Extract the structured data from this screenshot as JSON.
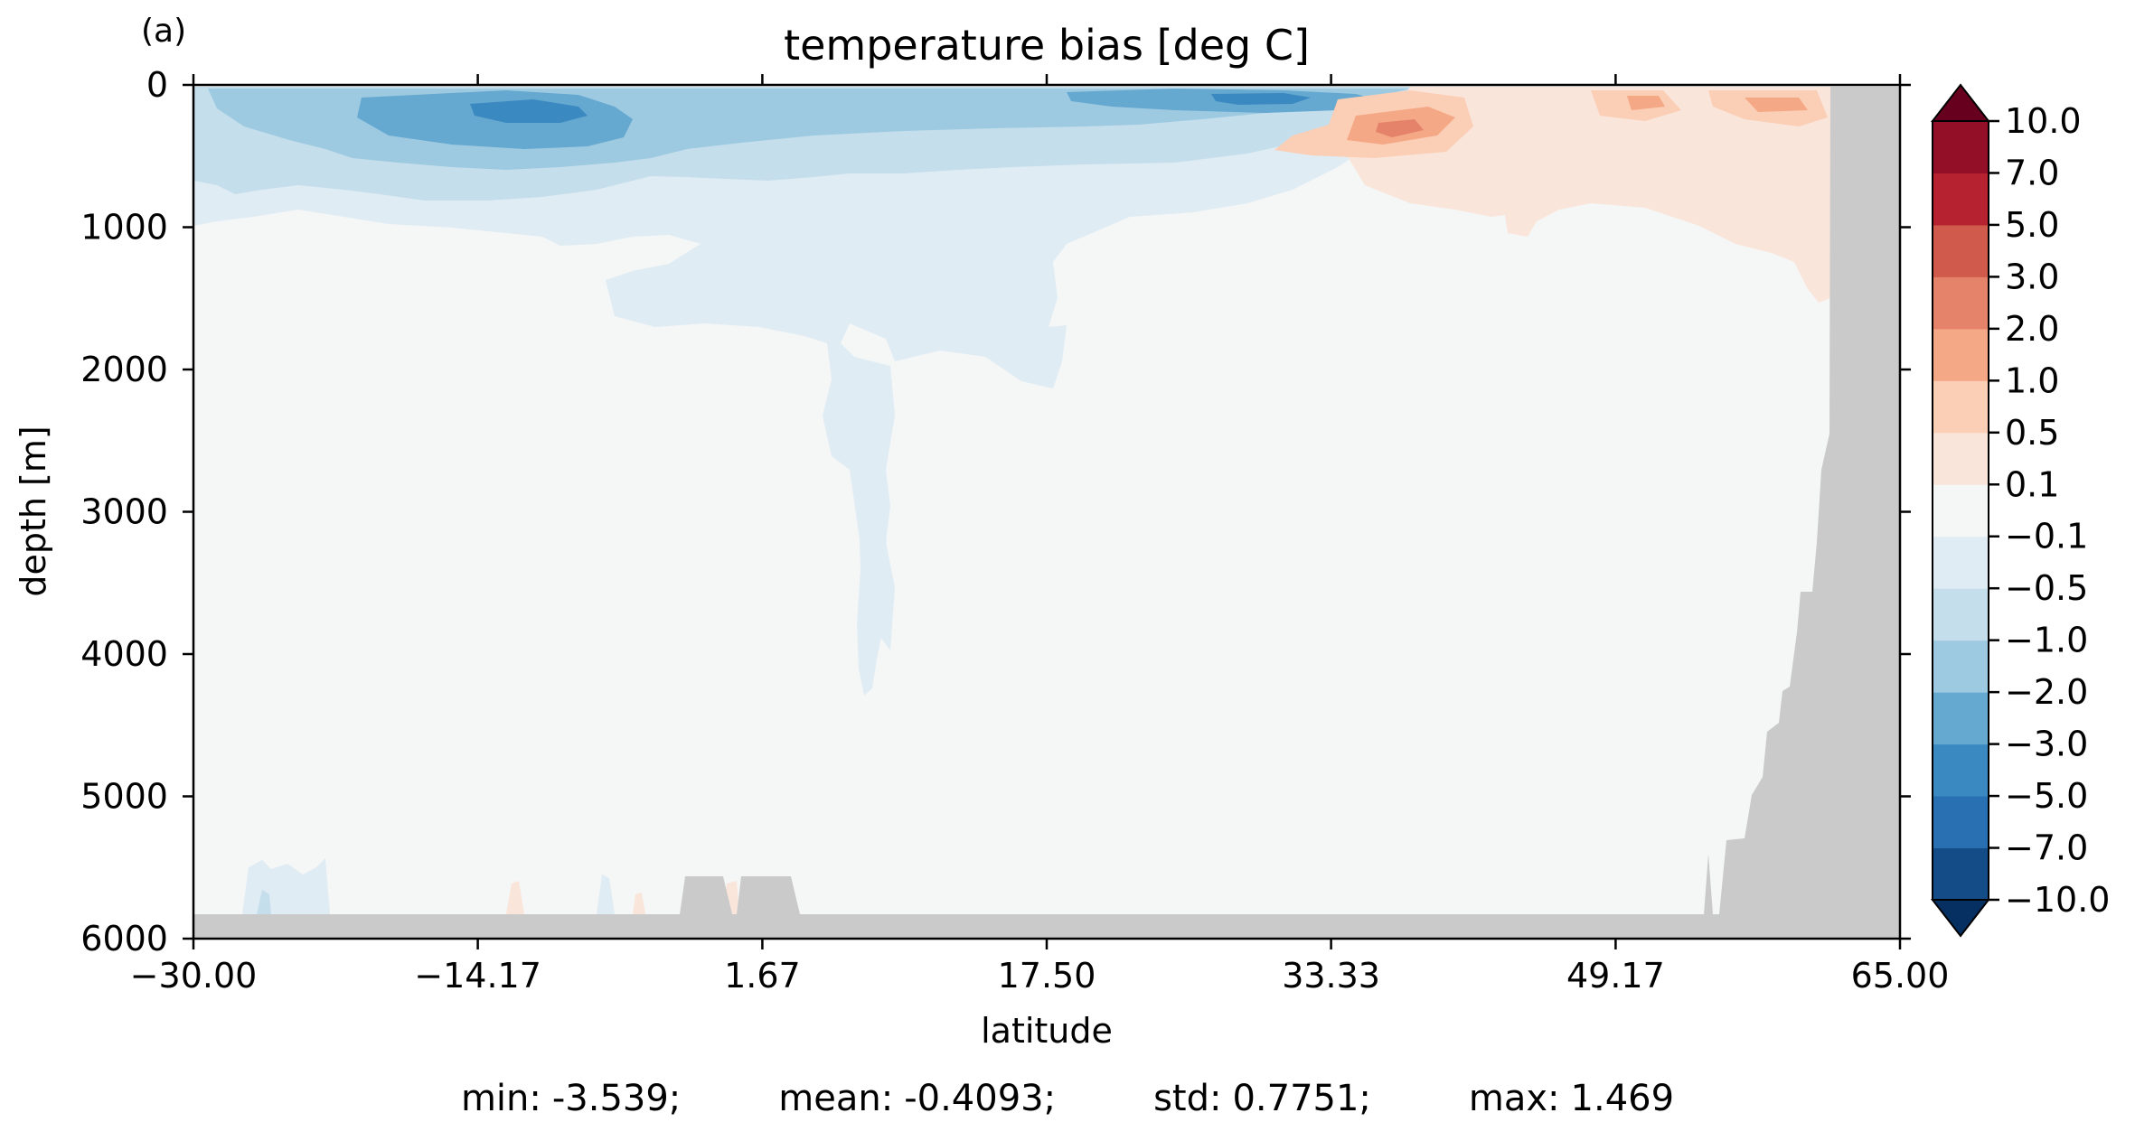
{
  "chart_data": {
    "type": "heatmap",
    "panel_label": "(a)",
    "title": "temperature bias [deg C]",
    "xlabel": "latitude",
    "ylabel": "depth [m]",
    "xlim": [
      -30,
      65
    ],
    "ylim": [
      6000,
      0
    ],
    "y_inverted": true,
    "x_ticks": [
      "−30.00",
      "−14.17",
      "1.67",
      "17.50",
      "33.33",
      "49.17",
      "65.00"
    ],
    "x_tick_values": [
      -30,
      -14.17,
      1.67,
      17.5,
      33.33,
      49.17,
      65
    ],
    "y_ticks": [
      "0",
      "1000",
      "2000",
      "3000",
      "4000",
      "5000",
      "6000"
    ],
    "y_tick_values": [
      0,
      1000,
      2000,
      3000,
      4000,
      5000,
      6000
    ],
    "colorbar": {
      "levels": [
        -10,
        -7,
        -5,
        -3,
        -2,
        -1,
        -0.5,
        -0.1,
        0.1,
        0.5,
        1,
        2,
        3,
        5,
        7,
        10
      ],
      "tick_labels": [
        "10.0",
        "7.0",
        "5.0",
        "3.0",
        "2.0",
        "1.0",
        "0.5",
        "0.1",
        "−0.1",
        "−0.5",
        "−1.0",
        "−2.0",
        "−3.0",
        "−5.0",
        "−7.0",
        "−10.0"
      ],
      "extend": "both",
      "colors": [
        "#053061",
        "#134c87",
        "#2870b1",
        "#3b89c1",
        "#65a8d0",
        "#9dcae1",
        "#c5deec",
        "#e0ecf4",
        "#f5f6f6",
        "#fae5da",
        "#fbceb6",
        "#f5a886",
        "#e4826a",
        "#d05a4b",
        "#b6222f",
        "#930f27",
        "#67001f"
      ]
    },
    "mask_color": "#cacaca",
    "stats": {
      "min": {
        "label": "min:",
        "value": "-3.539;"
      },
      "mean": {
        "label": "mean:",
        "value": "-0.4093;"
      },
      "std": {
        "label": "std:",
        "value": "0.7751;"
      },
      "max": {
        "label": "max:",
        "value": "1.469"
      }
    }
  }
}
